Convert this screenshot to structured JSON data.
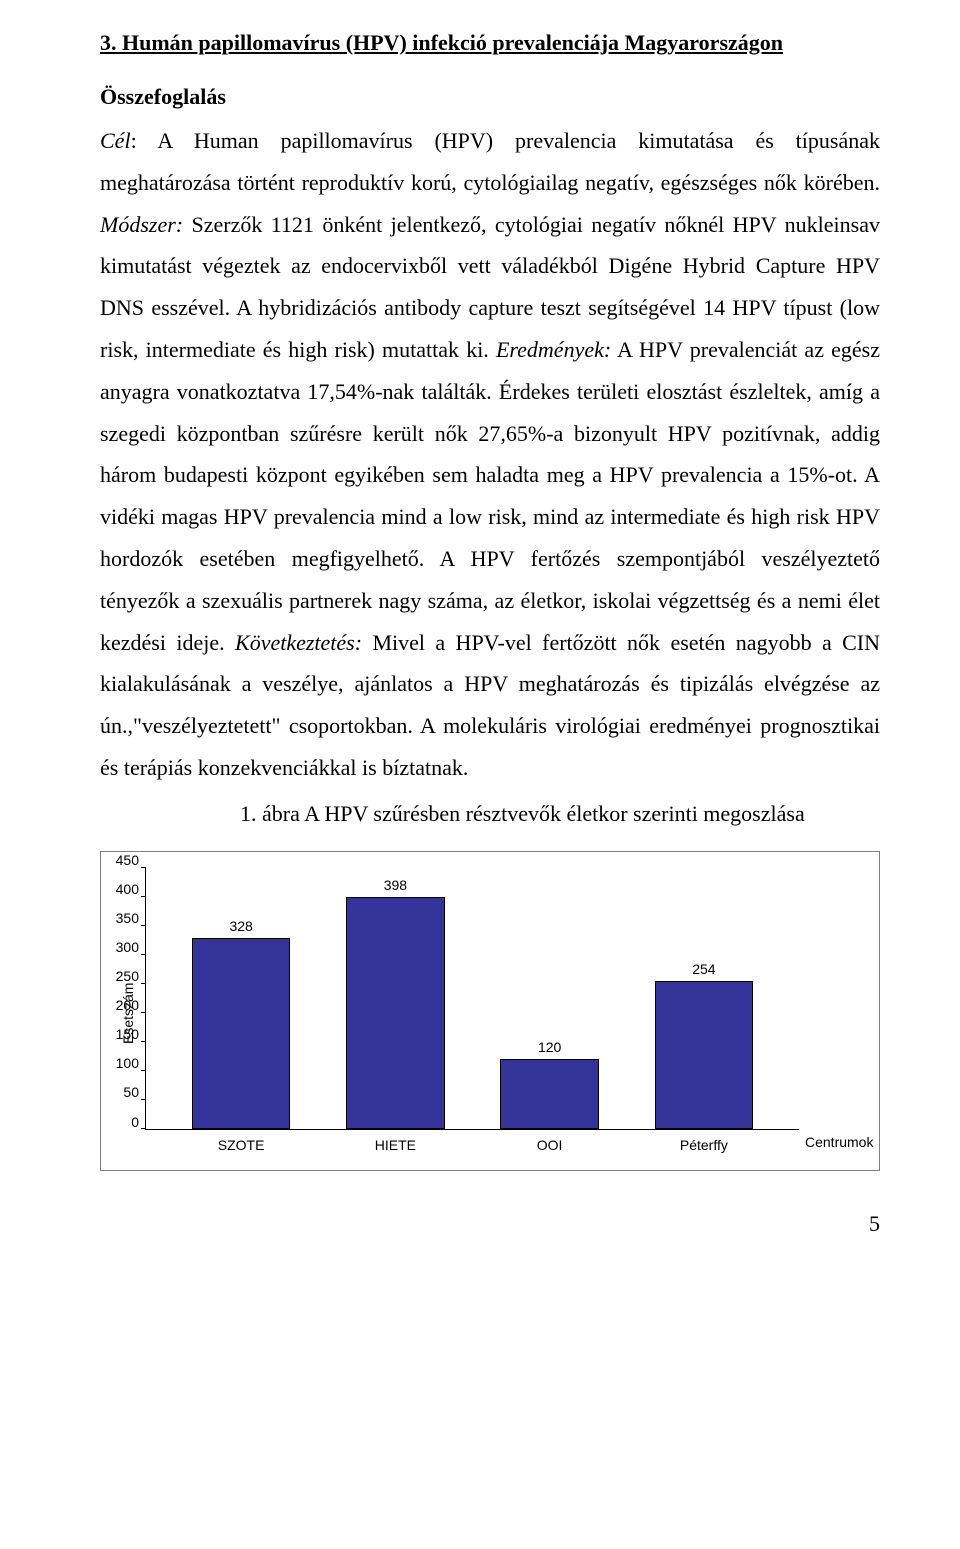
{
  "heading": "3. Humán papillomavírus (HPV) infekció prevalenciája Magyarországon",
  "summary_title": "Összefoglalás",
  "body_html": "<span class=\"italic\">Cél</span>: A Human papillomavírus (HPV) prevalencia kimutatása és típusának meghatározása történt reproduktív korú, cytológiailag negatív, egészséges nők körében. <span class=\"italic\">Módszer:</span> Szerzők 1121 önként jelentkező, cytológiai negatív nőknél HPV nukleinsav kimutatást végeztek az endocervixből vett váladékból Digéne Hybrid Capture HPV DNS esszével. A hybridizációs antibody capture teszt segítségével 14 HPV típust (low risk, intermediate és high risk) mutattak ki. <span class=\"italic\">Eredmények:</span> A HPV prevalenciát az egész anyagra vonatkoztatva 17,54%-nak találták. Érdekes területi elosztást észleltek, amíg a szegedi központban szűrésre került nők 27,65%-a bizonyult HPV pozitívnak, addig három budapesti központ egyikében sem haladta meg a HPV prevalencia a 15%-ot. A vidéki magas HPV prevalencia mind a low risk, mind az intermediate és high risk HPV hordozók esetében megfigyelhető. A HPV fertőzés szempontjából veszélyeztető tényezők a szexuális partnerek nagy száma, az életkor, iskolai végzettség és a nemi élet kezdési ideje. <span class=\"italic\">Következtetés:</span> Mivel a HPV-vel fertőzött nők esetén nagyobb a CIN kialakulásának a veszélye, ajánlatos a HPV meghatározás és tipizálás elvégzése az ún.,\"veszélyeztetett\" csoportokban. A molekuláris virológiai eredményei prognosztikai és terápiás konzekvenciákkal is bíztatnak.",
  "figure_caption": "1. ábra A HPV szűrésben résztvevők életkor szerinti megoszlása",
  "chart": {
    "type": "bar",
    "ylabel": "Esetszám",
    "ylim": [
      0,
      450
    ],
    "ytick_step": 50,
    "yticks": [
      450,
      400,
      350,
      300,
      250,
      200,
      150,
      100,
      50,
      0
    ],
    "categories": [
      "SZOTE",
      "HIETE",
      "OOI",
      "Péterffy"
    ],
    "values": [
      328,
      398,
      120,
      254
    ],
    "bar_color": "#333399",
    "bar_border_color": "#000000",
    "background_color": "#ffffff",
    "border_color": "#808080",
    "axis_color": "#000000",
    "right_label": "Centrumok",
    "label_fontsize": 14,
    "label_font": "Arial"
  },
  "page_number": "5"
}
